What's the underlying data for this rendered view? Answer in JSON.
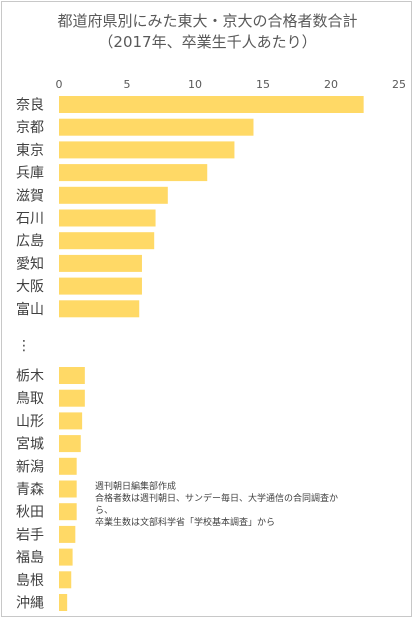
{
  "chart_data": {
    "type": "bar",
    "orientation": "horizontal",
    "title": "都道府県別にみた東大・京大の合格者数合計",
    "subtitle": "（2017年、卒業生千人あたり）",
    "xlim": [
      0,
      25
    ],
    "xticks": [
      "0",
      "5",
      "10",
      "15",
      "20",
      "25"
    ],
    "xtick_values": [
      0,
      5,
      10,
      15,
      20,
      25
    ],
    "bar_color": "#ffd966",
    "gap_marker": "⋮",
    "top_group": {
      "categories": [
        "奈良",
        "京都",
        "東京",
        "兵庫",
        "滋賀",
        "石川",
        "広島",
        "愛知",
        "大阪",
        "富山"
      ],
      "values": [
        22.4,
        14.3,
        12.9,
        10.9,
        8.0,
        7.1,
        7.0,
        6.1,
        6.1,
        5.9
      ]
    },
    "bottom_group": {
      "categories": [
        "栃木",
        "鳥取",
        "山形",
        "宮城",
        "新潟",
        "青森",
        "秋田",
        "岩手",
        "福島",
        "島根",
        "沖縄"
      ],
      "values": [
        1.9,
        1.9,
        1.7,
        1.6,
        1.3,
        1.3,
        1.3,
        1.2,
        1.0,
        0.9,
        0.6
      ]
    },
    "notes": [
      "週刊朝日編集部作成",
      "合格者数は週刊朝日、サンデー毎日、大学通信の合同調査か\nら、",
      "卒業生数は文部科学省「学校基本調査」から"
    ]
  }
}
